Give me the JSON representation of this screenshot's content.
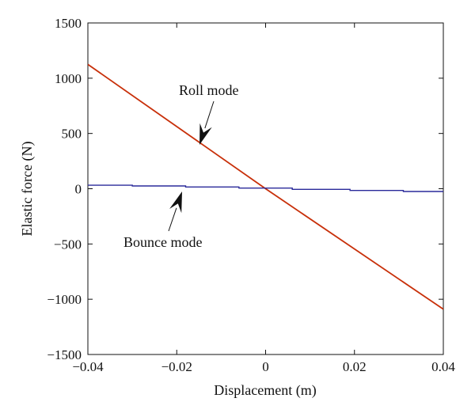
{
  "chart_data": {
    "type": "line",
    "xlabel": "Displacement (m)",
    "ylabel": "Elastic force (N)",
    "xlim": [
      -0.04,
      0.04
    ],
    "ylim": [
      -1500,
      1500
    ],
    "x_ticks": [
      -0.04,
      -0.02,
      0,
      0.02,
      0.04
    ],
    "x_tick_labels": [
      "−0.04",
      "−0.02",
      "0",
      "0.02",
      "0.04"
    ],
    "y_ticks": [
      1500,
      1000,
      500,
      0,
      -500,
      -1000,
      -1500
    ],
    "y_tick_labels": [
      "1500",
      "1000",
      "500",
      "0",
      "−500",
      "−1000",
      "−1500"
    ],
    "grid": false,
    "series": [
      {
        "name": "Roll mode",
        "color": "#c8300a",
        "x": [
          -0.04,
          0,
          0.04
        ],
        "y": [
          1125,
          0,
          -1090
        ]
      },
      {
        "name": "Bounce mode",
        "color": "#2a2a9a",
        "x": [
          -0.04,
          -0.03,
          -0.03,
          -0.018,
          -0.018,
          -0.006,
          -0.006,
          0.006,
          0.006,
          0.019,
          0.019,
          0.031,
          0.031,
          0.04
        ],
        "y": [
          32,
          32,
          25,
          25,
          16,
          16,
          6,
          6,
          -6,
          -6,
          -16,
          -16,
          -25,
          -25
        ]
      }
    ],
    "annotations": [
      {
        "text": "Roll mode",
        "series": "Roll mode"
      },
      {
        "text": "Bounce mode",
        "series": "Bounce mode"
      }
    ]
  }
}
